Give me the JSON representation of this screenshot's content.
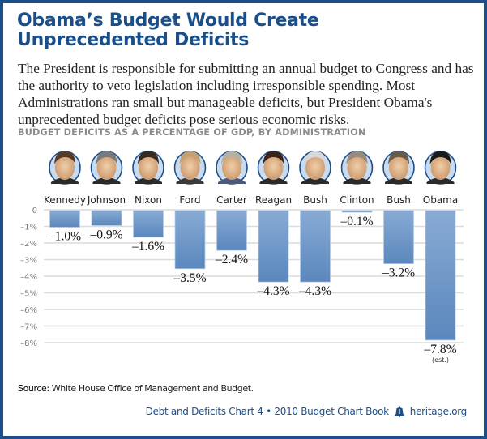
{
  "title": "Obama’s Budget Would Create Unprecedented Deficits",
  "intro": "The President is responsible for submitting an annual budget to Congress and has the authority to veto legislation including irresponsible spending. Most Administrations ran small but manageable deficits, but President Obama's unprecedented budget deficits pose serious economic risks.",
  "colors": {
    "border": "#1c4f8a",
    "title": "#1b4f8a",
    "bar_top": "#86a9d2",
    "bar_bottom": "#5a87bd",
    "grid": "#dcdcdc"
  },
  "chart_data": {
    "type": "bar",
    "title": "BUDGET DEFICITS AS A PERCENTAGE OF GDP, BY ADMINISTRATION",
    "xlabel": "",
    "ylabel": "",
    "categories": [
      "Kennedy",
      "Johnson",
      "Nixon",
      "Ford",
      "Carter",
      "Reagan",
      "Bush",
      "Clinton",
      "Bush",
      "Obama"
    ],
    "portrait_icons": [
      "kennedy-portrait-icon",
      "johnson-portrait-icon",
      "nixon-portrait-icon",
      "ford-portrait-icon",
      "carter-portrait-icon",
      "reagan-portrait-icon",
      "bush-sr-portrait-icon",
      "clinton-portrait-icon",
      "bush-jr-portrait-icon",
      "obama-portrait-icon"
    ],
    "values": [
      -1.0,
      -0.9,
      -1.6,
      -3.5,
      -2.4,
      -4.3,
      -4.3,
      -0.1,
      -3.2,
      -7.8
    ],
    "value_labels": [
      "–1.0%",
      "–0.9%",
      "–1.6%",
      "–3.5%",
      "–2.4%",
      "–4.3%",
      "–4.3%",
      "–0.1%",
      "–3.2%",
      "–7.8%"
    ],
    "value_notes": [
      "",
      "",
      "",
      "",
      "",
      "",
      "",
      "",
      "",
      "(est.)"
    ],
    "ylim": [
      -8,
      0
    ],
    "yticks": [
      0,
      -1,
      -2,
      -3,
      -4,
      -5,
      -6,
      -7,
      -8
    ],
    "ytick_labels": [
      "0",
      "–1%",
      "–2%",
      "–3%",
      "–4%",
      "–5%",
      "–6%",
      "–7%",
      "–8%"
    ],
    "grid": true,
    "legend": "none"
  },
  "source_label": "Source:",
  "source_text": " White House Office of Management and Budget.",
  "footer": {
    "text": "Debt and Deficits Chart 4 • 2010 Budget Chart Book",
    "logo_icon": "liberty-bell-icon",
    "site": "heritage.org"
  }
}
